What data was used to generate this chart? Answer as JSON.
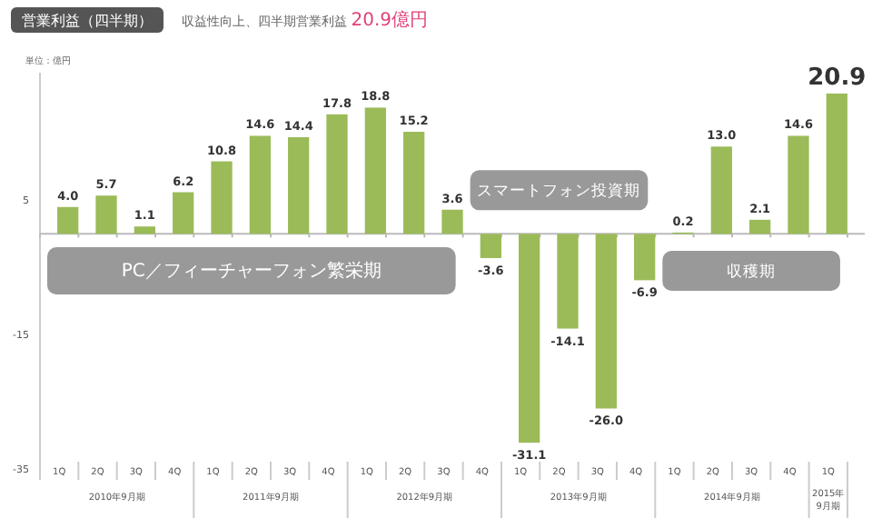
{
  "chart_data": {
    "type": "bar",
    "title": "営業利益（四半期）",
    "subtitle": "収益性向上、四半期営業利益 20.9億円",
    "ylabel": "単位：億円",
    "categories": [
      "1Q",
      "2Q",
      "3Q",
      "4Q",
      "1Q",
      "2Q",
      "3Q",
      "4Q",
      "1Q",
      "2Q",
      "3Q",
      "4Q",
      "1Q",
      "2Q",
      "3Q",
      "4Q",
      "1Q",
      "2Q",
      "3Q",
      "4Q",
      "1Q"
    ],
    "values": [
      4.0,
      5.7,
      1.1,
      6.2,
      10.8,
      14.6,
      14.4,
      17.8,
      18.8,
      15.2,
      3.6,
      -3.6,
      -31.1,
      -14.1,
      -26.0,
      -6.9,
      0.2,
      13.0,
      2.1,
      14.6,
      20.9
    ],
    "value_labels": [
      "4.0",
      "5.7",
      "1.1",
      "6.2",
      "10.8",
      "14.6",
      "14.4",
      "17.8",
      "18.8",
      "15.2",
      "3.6",
      "-3.6",
      "-31.1",
      "-14.1",
      "-26.0",
      "-6.9",
      "0.2",
      "13.0",
      "2.1",
      "14.6",
      "20.9"
    ],
    "color": "#9bbb59",
    "ylim": [
      -35,
      24
    ],
    "yticks": [
      5,
      -15,
      -35
    ],
    "annotations": [
      "2010年9月期",
      "2011年9月期",
      "2012年9月期",
      "2013年9月期",
      "2014年9月期",
      "2015年\n9月期",
      "PC／フィーチャーフォン繁栄期",
      "スマートフォン投資期",
      "収穫期"
    ]
  }
}
